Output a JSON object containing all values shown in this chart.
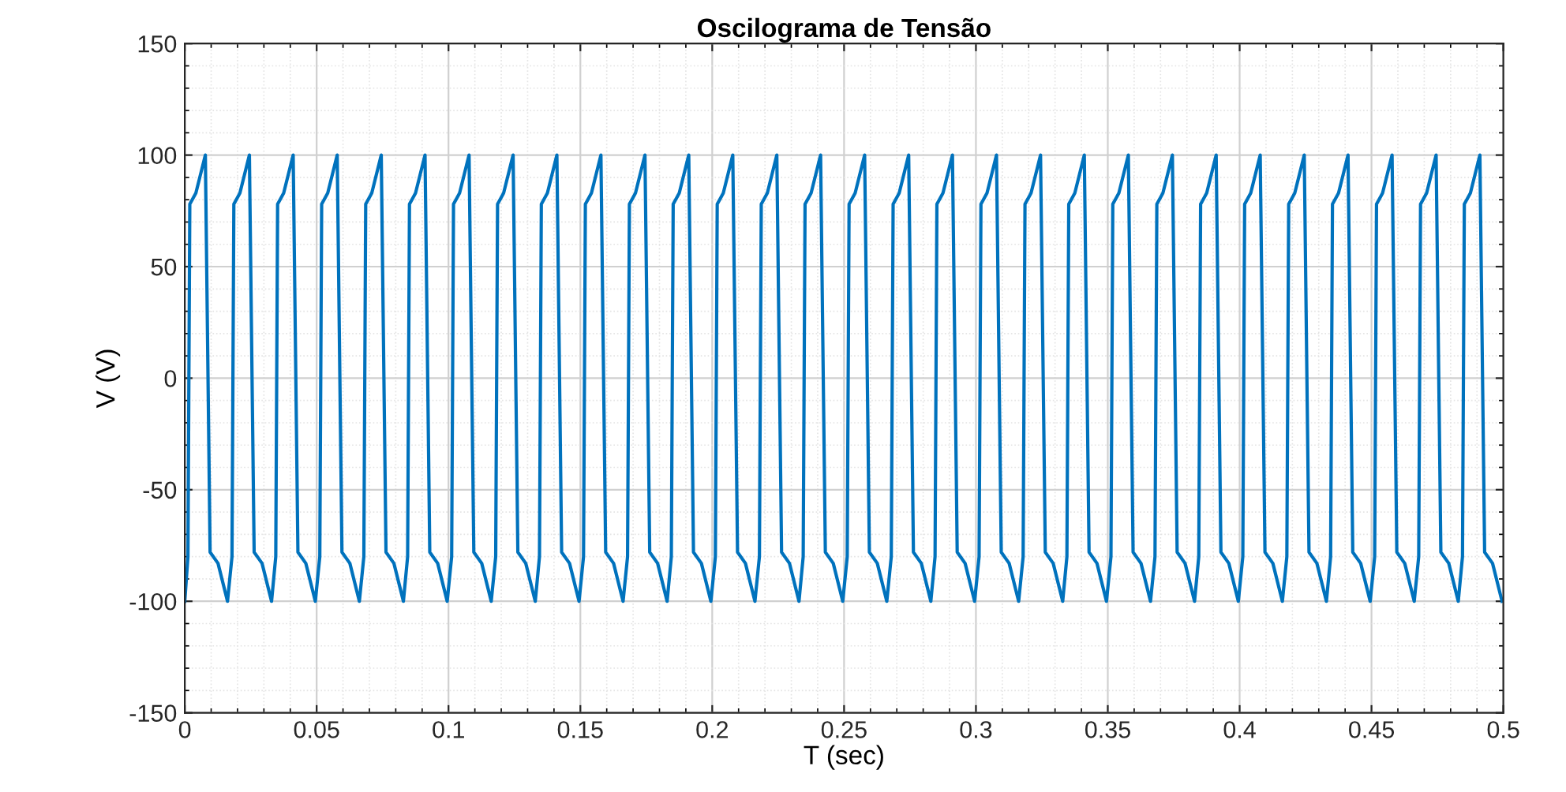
{
  "chart_data": {
    "type": "line",
    "title": "Oscilograma de Tensão",
    "xlabel": "T (sec)",
    "ylabel": "V (V)",
    "xlim": [
      0,
      0.5
    ],
    "ylim": [
      -150,
      150
    ],
    "xticks": [
      0,
      0.05,
      0.1,
      0.15,
      0.2,
      0.25,
      0.3,
      0.35,
      0.4,
      0.45,
      0.5
    ],
    "yticks": [
      -150,
      -100,
      -50,
      0,
      50,
      100,
      150
    ],
    "grid": true,
    "line_style": "solid",
    "marker": "none",
    "series": [
      {
        "color": "#0072bd",
        "x": [
          0,
          0.0012,
          0.0019,
          0.0042,
          0.0078,
          0.0096,
          0.0126,
          0.0162,
          0.0179,
          0.0186,
          0.0209,
          0.0245,
          0.0263,
          0.0293,
          0.0329,
          0.0345,
          0.0352,
          0.0375,
          0.0411,
          0.0429,
          0.0459,
          0.0495,
          0.0512,
          0.0519,
          0.0542,
          0.0578,
          0.0596,
          0.0626,
          0.0662,
          0.0679,
          0.0686,
          0.0709,
          0.0745,
          0.0763,
          0.0793,
          0.0829,
          0.0845,
          0.0852,
          0.0875,
          0.0911,
          0.0929,
          0.0959,
          0.0995,
          0.1012,
          0.1019,
          0.1042,
          0.1078,
          0.1096,
          0.1126,
          0.1162,
          0.1179,
          0.1186,
          0.1209,
          0.1245,
          0.1263,
          0.1293,
          0.1329,
          0.1345,
          0.1352,
          0.1375,
          0.1411,
          0.1429,
          0.1459,
          0.1495,
          0.1512,
          0.1519,
          0.1542,
          0.1578,
          0.1596,
          0.1626,
          0.1662,
          0.1679,
          0.1686,
          0.1709,
          0.1745,
          0.1763,
          0.1793,
          0.1829,
          0.1845,
          0.1852,
          0.1875,
          0.1911,
          0.1929,
          0.1959,
          0.1995,
          0.2012,
          0.2019,
          0.2042,
          0.2078,
          0.2096,
          0.2126,
          0.2162,
          0.2179,
          0.2186,
          0.2209,
          0.2245,
          0.2263,
          0.2293,
          0.2329,
          0.2345,
          0.2352,
          0.2375,
          0.2411,
          0.2429,
          0.2459,
          0.2495,
          0.2512,
          0.2519,
          0.2542,
          0.2578,
          0.2596,
          0.2626,
          0.2662,
          0.2679,
          0.2686,
          0.2709,
          0.2745,
          0.2763,
          0.2793,
          0.2829,
          0.2845,
          0.2852,
          0.2875,
          0.2911,
          0.2929,
          0.2959,
          0.2995,
          0.3012,
          0.3019,
          0.3042,
          0.3078,
          0.3096,
          0.3126,
          0.3162,
          0.3179,
          0.3186,
          0.3209,
          0.3245,
          0.3263,
          0.3293,
          0.3329,
          0.3345,
          0.3352,
          0.3375,
          0.3411,
          0.3429,
          0.3459,
          0.3495,
          0.3512,
          0.3519,
          0.3542,
          0.3578,
          0.3596,
          0.3626,
          0.3662,
          0.3679,
          0.3686,
          0.3709,
          0.3745,
          0.3763,
          0.3793,
          0.3829,
          0.3845,
          0.3852,
          0.3875,
          0.3911,
          0.3929,
          0.3959,
          0.3995,
          0.4012,
          0.4019,
          0.4042,
          0.4078,
          0.4096,
          0.4126,
          0.4162,
          0.4179,
          0.4186,
          0.4209,
          0.4245,
          0.4263,
          0.4293,
          0.4329,
          0.4345,
          0.4352,
          0.4375,
          0.4411,
          0.4429,
          0.4459,
          0.4495,
          0.4512,
          0.4519,
          0.4542,
          0.4578,
          0.4596,
          0.4626,
          0.4662,
          0.4679,
          0.4686,
          0.4709,
          0.4745,
          0.4763,
          0.4793,
          0.4829,
          0.4845,
          0.4852,
          0.4875,
          0.4911,
          0.4929,
          0.4959,
          0.4995
        ],
        "values": [
          -100,
          -80,
          78,
          83,
          100,
          -78,
          -83,
          -100,
          -80,
          78,
          83,
          100,
          -78,
          -83,
          -100,
          -80,
          78,
          83,
          100,
          -78,
          -83,
          -100,
          -80,
          78,
          83,
          100,
          -78,
          -83,
          -100,
          -80,
          78,
          83,
          100,
          -78,
          -83,
          -100,
          -80,
          78,
          83,
          100,
          -78,
          -83,
          -100,
          -80,
          78,
          83,
          100,
          -78,
          -83,
          -100,
          -80,
          78,
          83,
          100,
          -78,
          -83,
          -100,
          -80,
          78,
          83,
          100,
          -78,
          -83,
          -100,
          -80,
          78,
          83,
          100,
          -78,
          -83,
          -100,
          -80,
          78,
          83,
          100,
          -78,
          -83,
          -100,
          -80,
          78,
          83,
          100,
          -78,
          -83,
          -100,
          -80,
          78,
          83,
          100,
          -78,
          -83,
          -100,
          -80,
          78,
          83,
          100,
          -78,
          -83,
          -100,
          -80,
          78,
          83,
          100,
          -78,
          -83,
          -100,
          -80,
          78,
          83,
          100,
          -78,
          -83,
          -100,
          -80,
          78,
          83,
          100,
          -78,
          -83,
          -100,
          -80,
          78,
          83,
          100,
          -78,
          -83,
          -100,
          -80,
          78,
          83,
          100,
          -78,
          -83,
          -100,
          -80,
          78,
          83,
          100,
          -78,
          -83,
          -100,
          -80,
          78,
          83,
          100,
          -78,
          -83,
          -100,
          -80,
          78,
          83,
          100,
          -78,
          -83,
          -100,
          -80,
          78,
          83,
          100,
          -78,
          -83,
          -100,
          -80,
          78,
          83,
          100,
          -78,
          -83,
          -100,
          -80,
          78,
          83,
          100,
          -78,
          -83,
          -100,
          -80,
          78,
          83,
          100,
          -78,
          -83,
          -100,
          -80,
          78,
          83,
          100,
          -78,
          -83,
          -100,
          -80,
          78,
          83,
          100,
          -78,
          -83,
          -100,
          -80,
          78,
          83,
          100,
          -78,
          -83,
          -100,
          -80,
          78,
          83,
          100,
          -78,
          -83,
          -100
        ]
      }
    ]
  }
}
